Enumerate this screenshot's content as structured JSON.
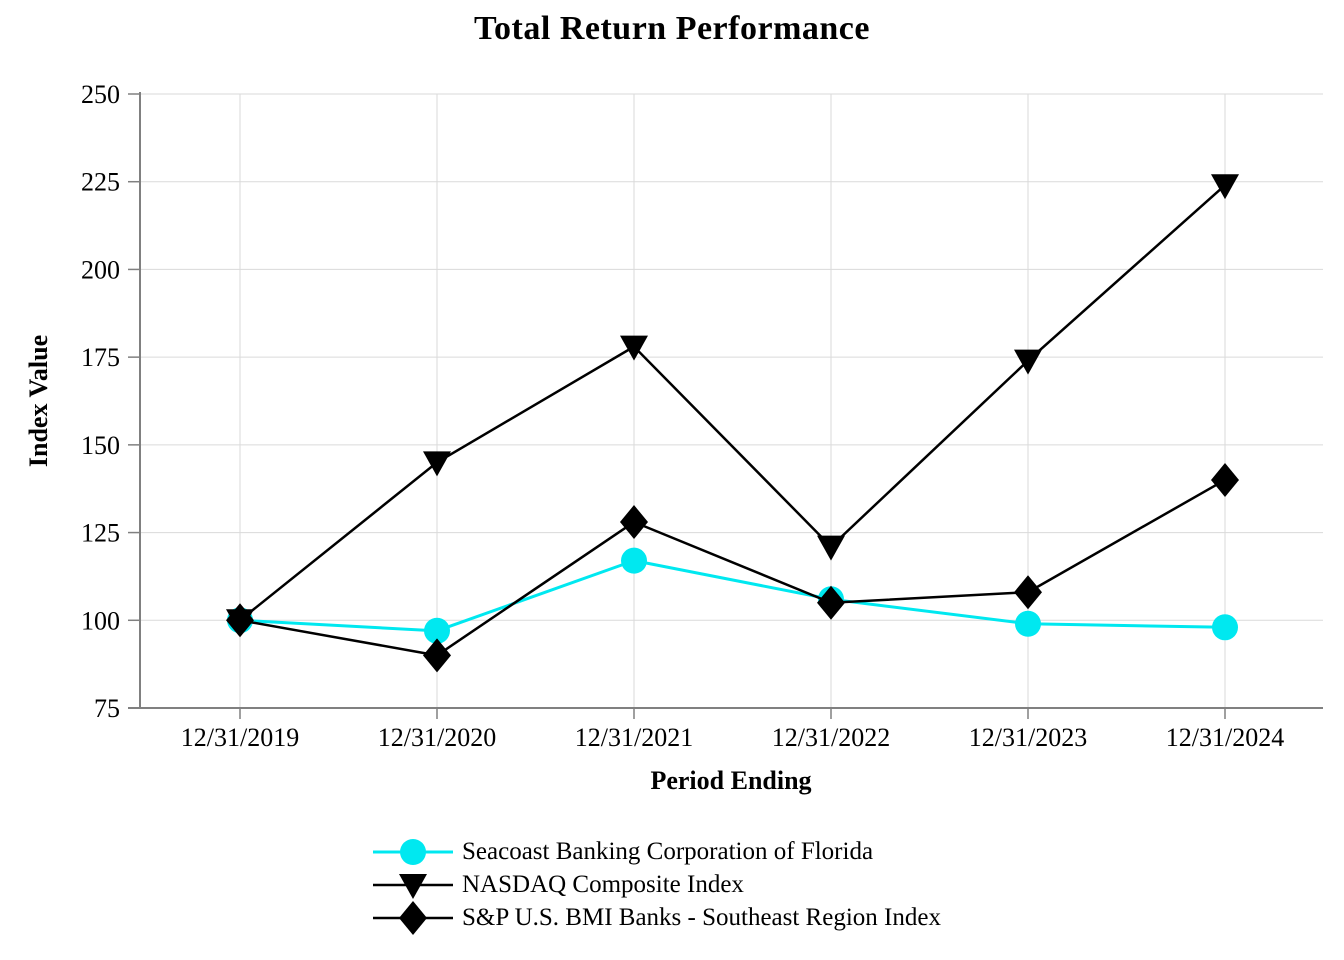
{
  "page": {
    "background": "#ffffff"
  },
  "chart_data": {
    "type": "line",
    "title": "Total Return Performance",
    "xlabel": "Period Ending",
    "ylabel": "Index Value",
    "categories": [
      "12/31/2019",
      "12/31/2020",
      "12/31/2021",
      "12/31/2022",
      "12/31/2023",
      "12/31/2024"
    ],
    "y_ticks": [
      75,
      100,
      125,
      150,
      175,
      200,
      225,
      250
    ],
    "ylim": [
      75,
      250
    ],
    "grid": true,
    "legend_position": "bottom-left",
    "colors": {
      "grid": "#DADADA",
      "axis": "#808080",
      "text": "#000000",
      "background": "#FFFFFF"
    },
    "series": [
      {
        "name": "Seacoast Banking Corporation of Florida",
        "marker": "circle",
        "color": "#00E8F0",
        "line_width": 3,
        "values": [
          100,
          97,
          117,
          106,
          99,
          98
        ]
      },
      {
        "name": "NASDAQ Composite Index",
        "marker": "triangle-down",
        "color": "#000000",
        "line_width": 2.5,
        "values": [
          100,
          145,
          178,
          121,
          174,
          224
        ]
      },
      {
        "name": "S&P U.S. BMI Banks - Southeast Region Index",
        "marker": "diamond",
        "color": "#000000",
        "line_width": 2.5,
        "values": [
          100,
          90,
          128,
          105,
          108,
          140
        ]
      }
    ]
  }
}
